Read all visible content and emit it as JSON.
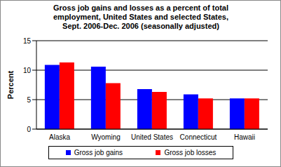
{
  "chart_data": {
    "type": "bar",
    "title": "Gross job gains and losses as a percent of total employment, United States and selected States, Sept. 2006-Dec. 2006 (seasonally adjusted)",
    "y_label": "Percent",
    "categories": [
      "Alaska",
      "Wyoming",
      "United States",
      "Connecticut",
      "Hawaii"
    ],
    "series": [
      {
        "name": "Gross job gains",
        "color": "#0000ff",
        "values": [
          10.9,
          10.6,
          6.8,
          5.9,
          5.2
        ]
      },
      {
        "name": "Gross job losses",
        "color": "#ff0000",
        "values": [
          11.3,
          7.8,
          6.3,
          5.2,
          5.2
        ]
      }
    ],
    "ylim": [
      0,
      15
    ],
    "yticks": [
      0,
      5,
      10,
      15
    ],
    "grid": true,
    "legend": "bottom"
  }
}
